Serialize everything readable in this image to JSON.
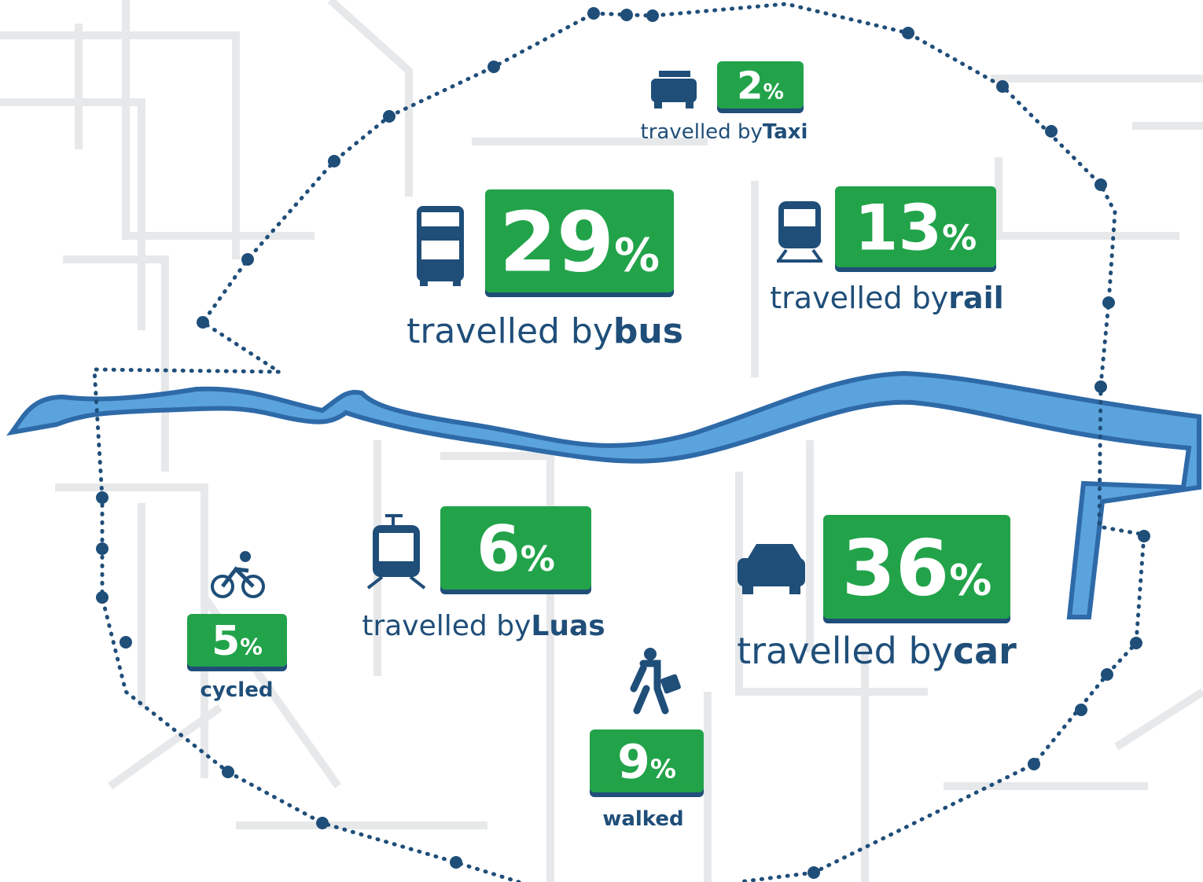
{
  "items": [
    {
      "percent": 2,
      "unit": "%",
      "label": "travelled by",
      "mode": "Taxi"
    },
    {
      "percent": 29,
      "unit": "%",
      "label": "travelled by",
      "mode": "bus"
    },
    {
      "percent": 13,
      "unit": "%",
      "label": "travelled by",
      "mode": "rail"
    },
    {
      "percent": 6,
      "unit": "%",
      "label": "travelled by",
      "mode": "Luas"
    },
    {
      "percent": 36,
      "unit": "%",
      "label": "travelled by",
      "mode": "car"
    },
    {
      "percent": 5,
      "unit": "%",
      "mode": "cycled"
    },
    {
      "percent": 9,
      "unit": "%",
      "mode": "walked"
    }
  ]
}
